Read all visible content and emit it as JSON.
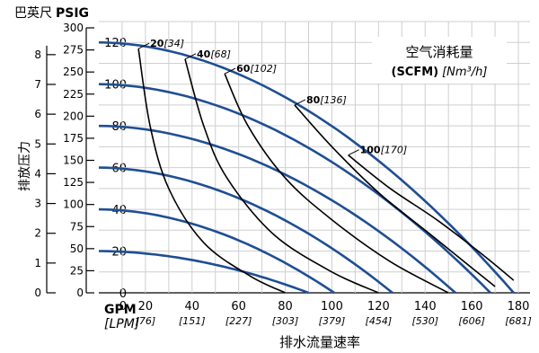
{
  "chart_data": {
    "type": "line",
    "colors": {
      "pump_curve": "#1f4e93",
      "air_curve": "#000000",
      "grid": "#cfcfcf"
    },
    "x_axis": {
      "title": "排水流量速率",
      "unit_primary": "GPM",
      "unit_secondary": "[LPM]",
      "range": [
        0,
        185
      ],
      "ticks": [
        0,
        20,
        40,
        60,
        80,
        100,
        120,
        140,
        160,
        180
      ],
      "tick_labels": [
        "0",
        "20",
        "40",
        "60",
        "80",
        "100",
        "120",
        "140",
        "160",
        "180"
      ],
      "secondary_tick_labels": [
        "",
        "[76]",
        "[151]",
        "[227]",
        "[303]",
        "[379]",
        "[454]",
        "[530]",
        "[606]",
        "[681]"
      ]
    },
    "y_axis": {
      "title": "排放压力",
      "range": [
        0,
        130
      ],
      "ticks": [
        0,
        20,
        40,
        60,
        80,
        100,
        120
      ]
    },
    "y2_axis": {
      "unit": "PSIG",
      "title_prefix": "巴英尺",
      "ticks": [
        0,
        25,
        50,
        75,
        100,
        125,
        150,
        175,
        200,
        225,
        250,
        275,
        300
      ]
    },
    "y3_axis": {
      "ticks": [
        0,
        1,
        2,
        3,
        4,
        5,
        6,
        7,
        8
      ]
    },
    "legend": {
      "title": "空气消耗量",
      "subtitle_bold": "(SCFM)",
      "subtitle_italic": "[Nm³/h]"
    },
    "pump_curves": [
      {
        "shutoff": 120,
        "max_flow": 178
      },
      {
        "shutoff": 100,
        "max_flow": 168
      },
      {
        "shutoff": 80,
        "max_flow": 153
      },
      {
        "shutoff": 60,
        "max_flow": 126
      },
      {
        "shutoff": 40,
        "max_flow": 101
      },
      {
        "shutoff": 20,
        "max_flow": 90
      }
    ],
    "air_curves": [
      {
        "label": "20",
        "label_metric": "[34]",
        "points": [
          [
            17,
            117
          ],
          [
            22,
            80
          ],
          [
            30,
            50
          ],
          [
            45,
            24
          ],
          [
            65,
            8
          ],
          [
            80,
            0
          ]
        ]
      },
      {
        "label": "40",
        "label_metric": "[68]",
        "points": [
          [
            37,
            112
          ],
          [
            45,
            80
          ],
          [
            55,
            55
          ],
          [
            75,
            28
          ],
          [
            100,
            10
          ],
          [
            120,
            0
          ]
        ]
      },
      {
        "label": "60",
        "label_metric": "[102]",
        "points": [
          [
            54,
            105
          ],
          [
            64,
            80
          ],
          [
            80,
            55
          ],
          [
            100,
            35
          ],
          [
            125,
            15
          ],
          [
            150,
            0
          ]
        ]
      },
      {
        "label": "80",
        "label_metric": "[136]",
        "points": [
          [
            84,
            90
          ],
          [
            100,
            70
          ],
          [
            120,
            48
          ],
          [
            140,
            30
          ],
          [
            160,
            12
          ],
          [
            170,
            3
          ]
        ]
      },
      {
        "label": "100",
        "label_metric": "[170]",
        "points": [
          [
            107,
            66
          ],
          [
            125,
            50
          ],
          [
            145,
            35
          ],
          [
            165,
            18
          ],
          [
            178,
            6
          ]
        ]
      }
    ]
  }
}
